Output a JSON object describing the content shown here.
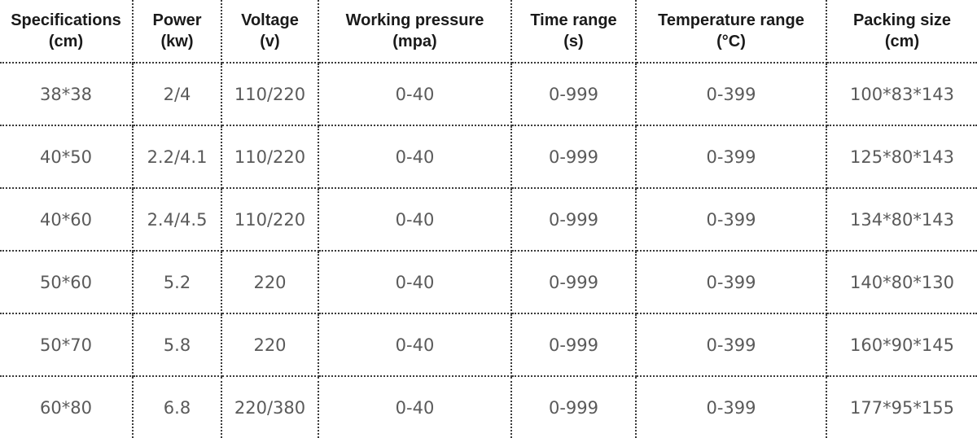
{
  "columns": [
    {
      "line1": "Specifications",
      "line2": "(cm)"
    },
    {
      "line1": "Power",
      "line2": "(kw)"
    },
    {
      "line1": "Voltage",
      "line2": "(v)"
    },
    {
      "line1": "Working pressure",
      "line2": "(mpa)"
    },
    {
      "line1": "Time range",
      "line2": "(s)"
    },
    {
      "line1": "Temperature range",
      "line2": "(°C)"
    },
    {
      "line1": "Packing size",
      "line2": "(cm)"
    }
  ],
  "rows": [
    [
      "38*38",
      "2/4",
      "110/220",
      "0-40",
      "0-999",
      "0-399",
      "100*83*143"
    ],
    [
      "40*50",
      "2.2/4.1",
      "110/220",
      "0-40",
      "0-999",
      "0-399",
      "125*80*143"
    ],
    [
      "40*60",
      "2.4/4.5",
      "110/220",
      "0-40",
      "0-999",
      "0-399",
      "134*80*143"
    ],
    [
      "50*60",
      "5.2",
      "220",
      "0-40",
      "0-999",
      "0-399",
      "140*80*130"
    ],
    [
      "50*70",
      "5.8",
      "220",
      "0-40",
      "0-999",
      "0-399",
      "160*90*145"
    ],
    [
      "60*80",
      "6.8",
      "220/380",
      "0-40",
      "0-999",
      "0-399",
      "177*95*155"
    ]
  ]
}
